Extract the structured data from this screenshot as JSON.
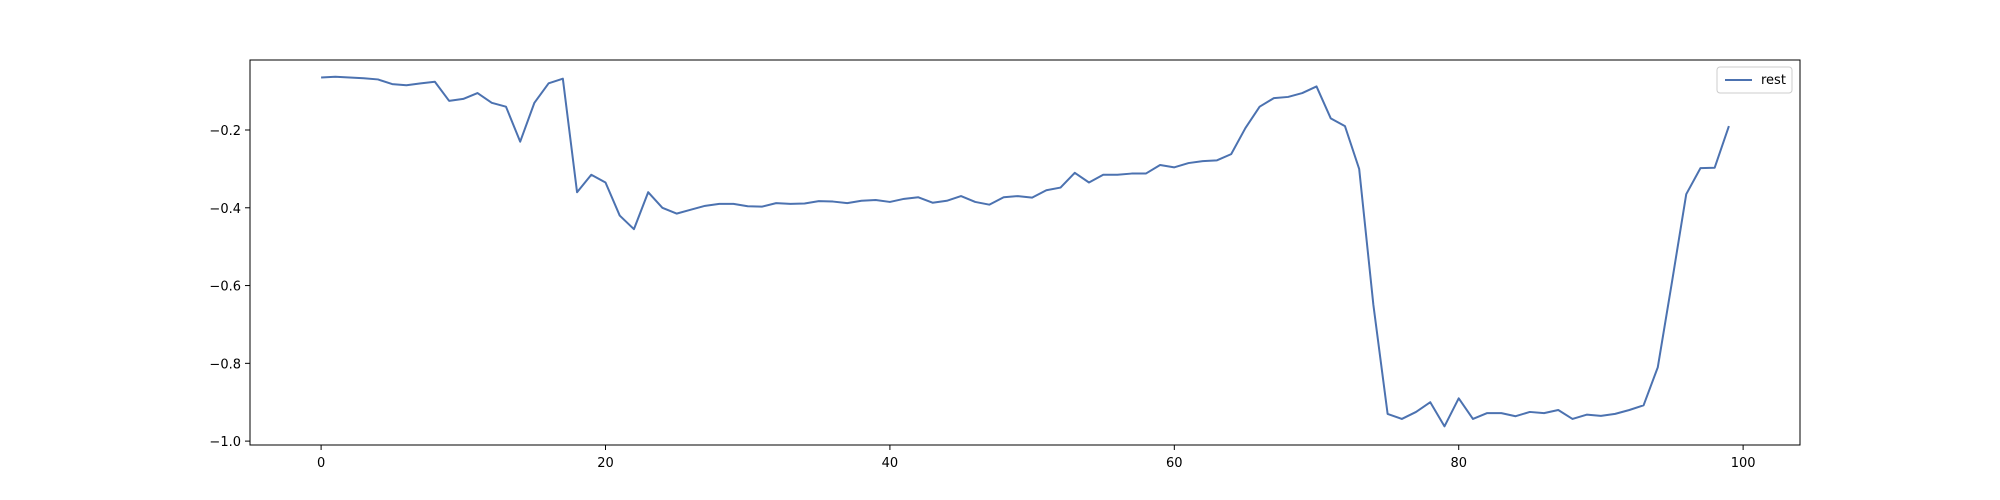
{
  "chart_data": {
    "type": "line",
    "x": [
      0,
      1,
      2,
      3,
      4,
      5,
      6,
      7,
      8,
      9,
      10,
      11,
      12,
      13,
      14,
      15,
      16,
      17,
      18,
      19,
      20,
      21,
      22,
      23,
      24,
      25,
      26,
      27,
      28,
      29,
      30,
      31,
      32,
      33,
      34,
      35,
      36,
      37,
      38,
      39,
      40,
      41,
      42,
      43,
      44,
      45,
      46,
      47,
      48,
      49,
      50,
      51,
      52,
      53,
      54,
      55,
      56,
      57,
      58,
      59,
      60,
      61,
      62,
      63,
      64,
      65,
      66,
      67,
      68,
      69,
      70,
      71,
      72,
      73,
      74,
      75,
      76,
      77,
      78,
      79,
      80,
      81,
      82,
      83,
      84,
      85,
      86,
      87,
      88,
      89,
      90,
      91,
      92,
      93,
      94,
      95,
      96,
      97,
      98,
      99
    ],
    "series": [
      {
        "name": "rest",
        "color": "#4c72b0",
        "values": [
          -0.065,
          -0.063,
          -0.065,
          -0.067,
          -0.07,
          -0.082,
          -0.085,
          -0.08,
          -0.076,
          -0.125,
          -0.12,
          -0.105,
          -0.13,
          -0.14,
          -0.23,
          -0.13,
          -0.08,
          -0.068,
          -0.36,
          -0.315,
          -0.335,
          -0.42,
          -0.455,
          -0.36,
          -0.4,
          -0.415,
          -0.405,
          -0.395,
          -0.39,
          -0.39,
          -0.396,
          -0.397,
          -0.388,
          -0.39,
          -0.389,
          -0.383,
          -0.384,
          -0.388,
          -0.382,
          -0.38,
          -0.385,
          -0.377,
          -0.373,
          -0.387,
          -0.382,
          -0.37,
          -0.385,
          -0.392,
          -0.373,
          -0.37,
          -0.374,
          -0.355,
          -0.348,
          -0.31,
          -0.335,
          -0.315,
          -0.315,
          -0.312,
          -0.312,
          -0.29,
          -0.296,
          -0.285,
          -0.28,
          -0.278,
          -0.262,
          -0.195,
          -0.14,
          -0.118,
          -0.115,
          -0.105,
          -0.088,
          -0.17,
          -0.19,
          -0.3,
          -0.65,
          -0.93,
          -0.943,
          -0.925,
          -0.9,
          -0.962,
          -0.89,
          -0.943,
          -0.928,
          -0.928,
          -0.936,
          -0.925,
          -0.928,
          -0.92,
          -0.943,
          -0.932,
          -0.935,
          -0.93,
          -0.92,
          -0.908,
          -0.81,
          -0.59,
          -0.365,
          -0.298,
          -0.297,
          -0.19
        ]
      }
    ],
    "xlim": [
      -5,
      104
    ],
    "ylim": [
      -1.01,
      -0.02
    ],
    "xticks": [
      0,
      20,
      40,
      60,
      80,
      100
    ],
    "yticks": [
      -1.0,
      -0.8,
      -0.6,
      -0.4,
      -0.2
    ],
    "xtick_labels": [
      "0",
      "20",
      "40",
      "60",
      "80",
      "100"
    ],
    "ytick_labels": [
      "−1.0",
      "−0.8",
      "−0.6",
      "−0.4",
      "−0.2"
    ],
    "legend": {
      "position": "top-right",
      "entries": [
        "rest"
      ]
    },
    "grid": false,
    "title": "",
    "xlabel": "",
    "ylabel": ""
  }
}
